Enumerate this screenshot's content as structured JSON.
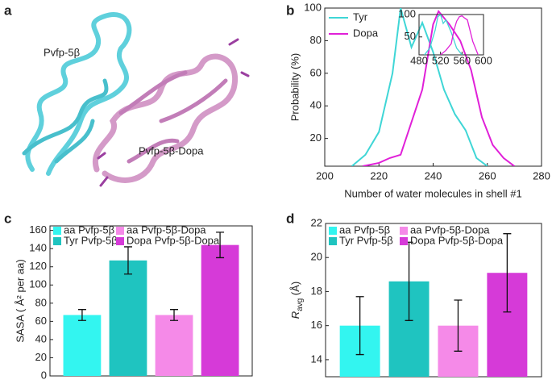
{
  "chart_data": [
    {
      "type": "illustration",
      "panel": "a",
      "labels": [
        "Pvfp-5β",
        "Pvfp-5β-Dopa"
      ]
    },
    {
      "type": "line",
      "panel": "b",
      "xlabel": "Number of water molecules in shell #1",
      "ylabel": "Probability (%)",
      "xlim": [
        200,
        280
      ],
      "xticks": [
        200,
        220,
        240,
        260,
        280
      ],
      "ylim": [
        3,
        100
      ],
      "yticks": [
        20,
        40,
        60,
        80,
        100
      ],
      "series": [
        {
          "name": "Tyr",
          "color": "#3fd6d6",
          "x": [
            210,
            215,
            220,
            225,
            228,
            232,
            236,
            240,
            244,
            248,
            252,
            256,
            260
          ],
          "values": [
            3,
            10,
            24,
            60,
            100,
            76,
            91,
            73,
            50,
            35,
            25,
            8,
            3
          ]
        },
        {
          "name": "Dopa",
          "color": "#e020d8",
          "x": [
            214,
            220,
            224,
            228,
            232,
            236,
            240,
            242,
            246,
            250,
            254,
            258,
            262,
            266,
            270
          ],
          "values": [
            3,
            5,
            8,
            10,
            30,
            50,
            90,
            98,
            90,
            80,
            62,
            33,
            16,
            8,
            3
          ]
        }
      ]
    },
    {
      "type": "line",
      "panel": null,
      "xlim": [
        480,
        600
      ],
      "xticks": [
        480,
        520,
        560,
        600
      ],
      "ylim": [
        10,
        100
      ],
      "yticks": [
        50,
        100
      ],
      "series": [
        {
          "color": "#3fd6d6",
          "x": [
            490,
            500,
            510,
            515,
            520,
            525,
            530,
            540,
            550,
            560
          ],
          "values": [
            10,
            25,
            65,
            95,
            100,
            80,
            88,
            60,
            25,
            10
          ]
        },
        {
          "color": "#e020d8",
          "x": [
            520,
            530,
            540,
            545,
            550,
            555,
            560,
            565,
            570,
            580,
            590
          ],
          "values": [
            10,
            20,
            35,
            65,
            85,
            95,
            97,
            92,
            88,
            40,
            10
          ]
        }
      ]
    },
    {
      "type": "bar",
      "panel": "c",
      "ylabel": "SASA ( Å² per aa)",
      "ylim": [
        0,
        165
      ],
      "yticks": [
        0,
        20,
        40,
        60,
        80,
        100,
        120,
        140,
        160
      ],
      "series": [
        {
          "name": "aa Pvfp-5β",
          "color": "#33f5f0",
          "values": [
            67
          ],
          "errors": [
            6
          ]
        },
        {
          "name": "Tyr Pvfp-5β",
          "color": "#1fc4c0",
          "values": [
            127
          ],
          "errors": [
            15
          ]
        },
        {
          "name": "aa Pvfp-5β-Dopa",
          "color": "#f58ae8",
          "values": [
            67
          ],
          "errors": [
            6
          ]
        },
        {
          "name": "Dopa Pvfp-5β-Dopa",
          "color": "#d63ad8",
          "values": [
            144
          ],
          "errors": [
            14
          ]
        }
      ]
    },
    {
      "type": "bar",
      "panel": "d",
      "ylabel": [
        "R",
        "avg",
        " (Å)"
      ],
      "ylim": [
        13,
        22
      ],
      "yticks": [
        14,
        16,
        18,
        20,
        22
      ],
      "series": [
        {
          "name": "aa Pvfp-5β",
          "color": "#33f5f0",
          "values": [
            16.0
          ],
          "errors": [
            1.7
          ]
        },
        {
          "name": "Tyr Pvfp-5β",
          "color": "#1fc4c0",
          "values": [
            18.6
          ],
          "errors": [
            2.3
          ]
        },
        {
          "name": "aa Pvfp-5β-Dopa",
          "color": "#f58ae8",
          "values": [
            16.0
          ],
          "errors": [
            1.5
          ]
        },
        {
          "name": "Dopa Pvfp-5β-Dopa",
          "color": "#d63ad8",
          "values": [
            19.1
          ],
          "errors": [
            2.3
          ]
        }
      ]
    }
  ]
}
